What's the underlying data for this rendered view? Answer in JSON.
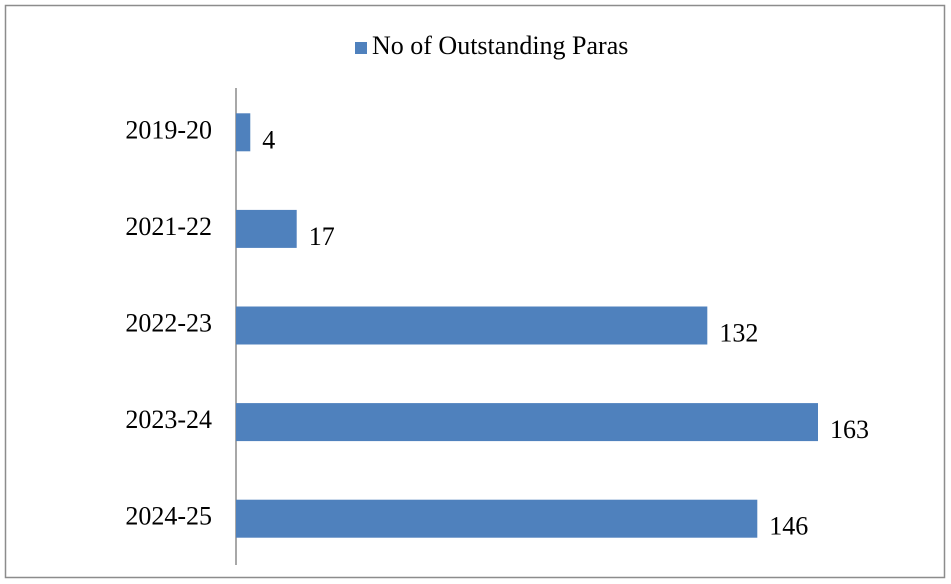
{
  "chart_data": {
    "type": "barh",
    "categories": [
      "2019-20",
      "2021-22",
      "2022-23",
      "2023-24",
      "2024-25"
    ],
    "series": [
      {
        "name": "No of Outstanding Paras",
        "color": "#4f81bd",
        "values": [
          4,
          17,
          132,
          163,
          146
        ]
      }
    ]
  }
}
